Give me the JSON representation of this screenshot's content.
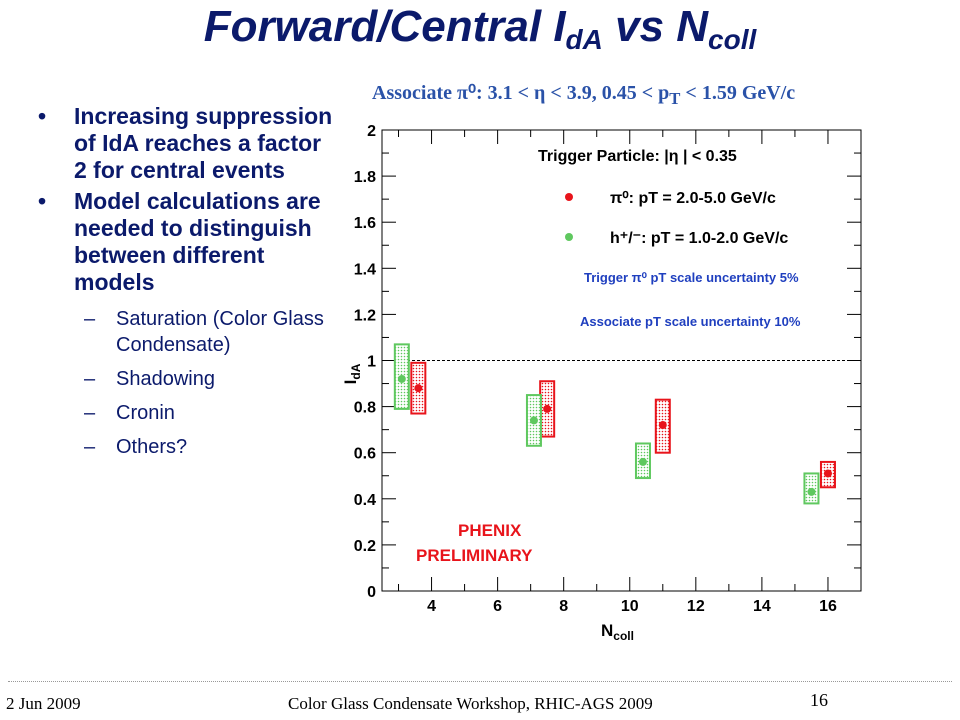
{
  "slide": {
    "title_main": "Forward/Central I",
    "title_sub1": "dA",
    "title_mid": " vs N",
    "title_sub2": "coll",
    "associate_label": "Associate π⁰: 3.1 < η < 3.9, 0.45 < p",
    "associate_sub": "T",
    "associate_tail": " < 1.59 GeV/c"
  },
  "bullets": [
    {
      "text": "Increasing suppression of IdA reaches a factor 2 for central events"
    },
    {
      "text": "Model calculations are needed to distinguish between different models"
    }
  ],
  "bullet_symbol": "•",
  "sub_dash": "–",
  "sub_items": [
    "Saturation (Color Glass Condensate)",
    "Shadowing",
    "Cronin",
    "Others?"
  ],
  "footer": {
    "date": "2 Jun 2009",
    "conference": "Color Glass Condensate Workshop, RHIC-AGS 2009",
    "page": "16"
  },
  "colors": {
    "title": "#0b1a6b",
    "associate": "#2a52a8",
    "red": "#e8141b",
    "green": "#5fc85f",
    "uncertainty_text": "#1f3fbf",
    "preliminary": "#e8141b"
  },
  "chart_data": {
    "type": "scatter",
    "xlabel": "N",
    "xlabel_sub": "coll",
    "ylabel": "I",
    "ylabel_sub": "dA",
    "xlim": [
      2.5,
      17
    ],
    "ylim": [
      0,
      2
    ],
    "xticks": [
      4,
      6,
      8,
      10,
      12,
      14,
      16
    ],
    "yticks": [
      0,
      0.2,
      0.4,
      0.6,
      0.8,
      1,
      1.2,
      1.4,
      1.6,
      1.8,
      2
    ],
    "ytick_labels": [
      "0",
      "0.2",
      "0.4",
      "0.6",
      "0.8",
      "1",
      "1.2",
      "1.4",
      "1.6",
      "1.8",
      "2"
    ],
    "reference_line": 1.0,
    "legend_title": "Trigger Particle: |η | < 0.35",
    "series": [
      {
        "name": "π⁰: pT = 2.0-5.0 GeV/c",
        "color": "#e8141b",
        "x": [
          3.6,
          7.5,
          11.0,
          16.0
        ],
        "y": [
          0.88,
          0.79,
          0.72,
          0.51
        ],
        "sys_low": [
          0.77,
          0.67,
          0.6,
          0.45
        ],
        "sys_high": [
          0.99,
          0.91,
          0.83,
          0.56
        ]
      },
      {
        "name": "h⁺/⁻: pT = 1.0-2.0 GeV/c",
        "color": "#5fc85f",
        "x": [
          3.1,
          7.1,
          10.4,
          15.5
        ],
        "y": [
          0.92,
          0.74,
          0.56,
          0.43
        ],
        "sys_low": [
          0.79,
          0.63,
          0.49,
          0.38
        ],
        "sys_high": [
          1.07,
          0.85,
          0.64,
          0.51
        ]
      }
    ],
    "notes": [
      "Trigger π⁰ pT scale uncertainty 5%",
      "Associate pT scale uncertainty 10%"
    ],
    "annotation_line1": "PHENIX",
    "annotation_line2": "PRELIMINARY"
  }
}
